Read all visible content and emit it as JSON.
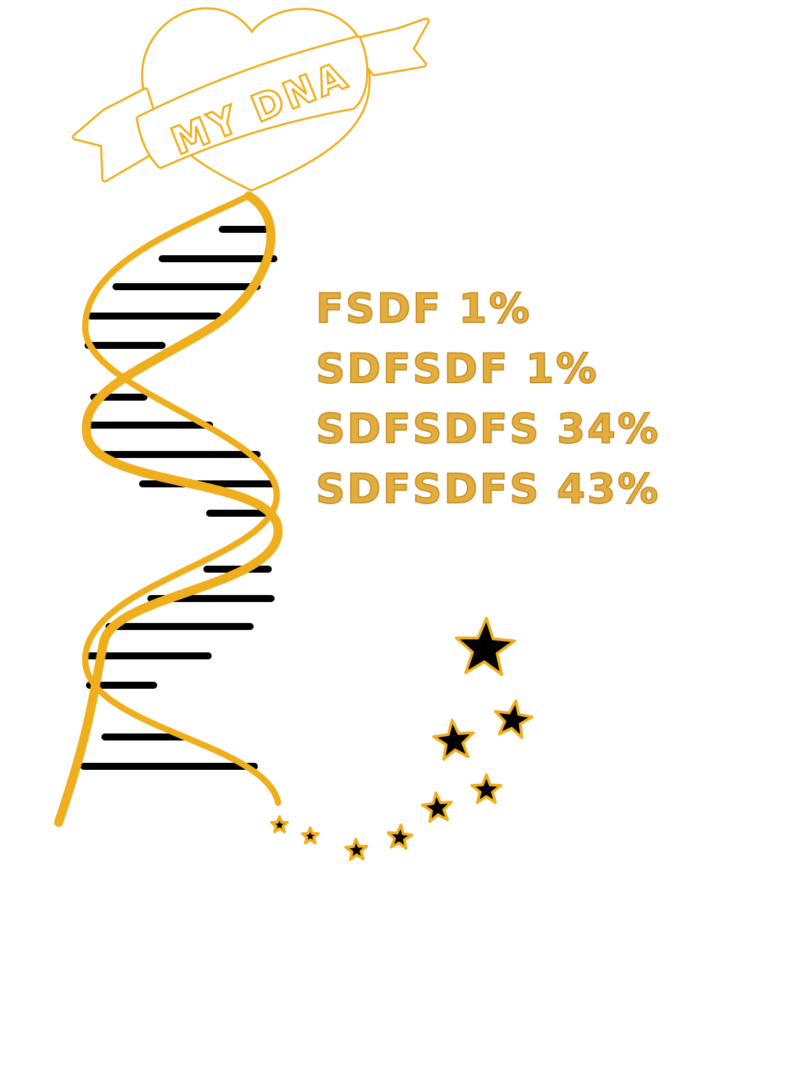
{
  "logo": {
    "ribbon_text": "MY DNA"
  },
  "stats": [
    {
      "label": "FSDF 1%"
    },
    {
      "label": "SDFSDF 1%"
    },
    {
      "label": "SDFSDFS 34%"
    },
    {
      "label": "SDFSDFS 43%"
    }
  ],
  "colors": {
    "gold": "#efae1c",
    "text_gold": "#e3ad3e",
    "rung": "#000000",
    "star_fill": "#000000"
  },
  "icons": {
    "logo": "heart-with-ribbon-icon",
    "helix": "dna-helix-icon",
    "stars": "star-icon"
  }
}
